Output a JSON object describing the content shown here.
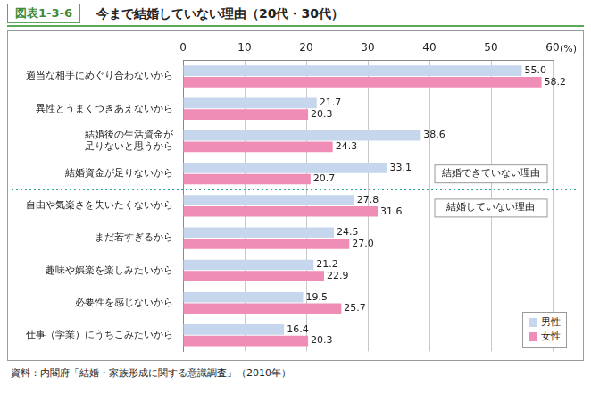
{
  "chart_data": {
    "type": "bar",
    "orientation": "horizontal",
    "figure_label": "図表1-3-6",
    "title": "今まで結婚していない理由（20代・30代）",
    "source": "資料：内閣府「結婚・家族形成に関する意識調査」（2010年）",
    "xlabel": "(%)",
    "annotations": [
      "結婚できていない理由",
      "結婚していない理由"
    ],
    "categories": [
      "適当な相手にめぐり合わないから",
      "異性とうまくつきあえないから",
      "結婚後の生活資金が足りないと思うから",
      "結婚資金が足りないから",
      "自由や気楽さを失いたくないから",
      "まだ若すぎるから",
      "趣味や娯楽を楽しみたいから",
      "必要性を感じないから",
      "仕事（学業）にうちこみたいから"
    ],
    "series": [
      {
        "name": "男性",
        "color": "#c6d6ec",
        "values": [
          55.0,
          21.7,
          38.6,
          33.1,
          27.8,
          24.5,
          21.2,
          19.5,
          16.4
        ],
        "value_labels": [
          "55.0",
          "21.7",
          "38.6",
          "33.1",
          "27.8",
          "24.5",
          "21.2",
          "19.5",
          "16.4"
        ]
      },
      {
        "name": "女性",
        "color": "#f08db6",
        "values": [
          58.2,
          20.3,
          24.3,
          20.7,
          31.6,
          27.0,
          22.9,
          25.7,
          20.3
        ],
        "value_labels": [
          "58.2",
          "20.3",
          "24.3",
          "20.7",
          "31.6",
          "27.0",
          "22.9",
          "25.7",
          "20.3"
        ]
      }
    ],
    "xlim": [
      0,
      60
    ],
    "xticks": [
      0,
      10,
      20,
      30,
      40,
      50,
      60
    ],
    "grid": true,
    "legend": "bottom-right",
    "data_labels": true
  }
}
